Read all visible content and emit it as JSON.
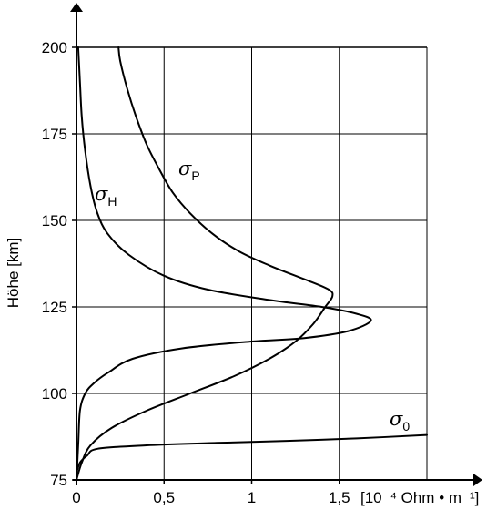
{
  "chart_data": {
    "type": "line",
    "xlabel": "[10⁻⁴ Ohm • m⁻¹]",
    "ylabel": "Höhe [km]",
    "xlim": [
      0,
      2.0
    ],
    "ylim": [
      75,
      200
    ],
    "x_ticks": [
      0,
      0.5,
      1,
      1.5
    ],
    "x_tick_labels": [
      "0",
      "0,5",
      "1",
      "1,5"
    ],
    "y_ticks": [
      75,
      100,
      125,
      150,
      175,
      200
    ],
    "y_tick_labels": [
      "75",
      "100",
      "125",
      "150",
      "175",
      "200"
    ],
    "grid": true,
    "series": [
      {
        "name": "σP",
        "label_sym": "σ",
        "label_sub": "P",
        "points": [
          [
            0.0,
            75
          ],
          [
            0.03,
            80
          ],
          [
            0.08,
            85
          ],
          [
            0.2,
            90
          ],
          [
            0.4,
            95
          ],
          [
            0.65,
            100
          ],
          [
            0.9,
            105
          ],
          [
            1.1,
            110
          ],
          [
            1.25,
            115
          ],
          [
            1.35,
            120
          ],
          [
            1.42,
            125
          ],
          [
            1.46,
            128
          ],
          [
            1.44,
            130
          ],
          [
            1.3,
            133
          ],
          [
            1.1,
            137
          ],
          [
            0.93,
            141
          ],
          [
            0.78,
            146
          ],
          [
            0.65,
            152
          ],
          [
            0.55,
            158
          ],
          [
            0.47,
            165
          ],
          [
            0.4,
            172
          ],
          [
            0.34,
            180
          ],
          [
            0.29,
            188
          ],
          [
            0.25,
            196
          ],
          [
            0.24,
            200
          ]
        ]
      },
      {
        "name": "σH",
        "label_sym": "σ",
        "label_sub": "H",
        "points": [
          [
            0.0,
            75
          ],
          [
            0.01,
            85
          ],
          [
            0.02,
            95
          ],
          [
            0.05,
            100
          ],
          [
            0.1,
            103
          ],
          [
            0.18,
            106
          ],
          [
            0.32,
            110
          ],
          [
            0.6,
            113
          ],
          [
            1.0,
            115
          ],
          [
            1.3,
            116
          ],
          [
            1.55,
            118
          ],
          [
            1.68,
            121
          ],
          [
            1.6,
            123
          ],
          [
            1.4,
            125
          ],
          [
            1.1,
            127
          ],
          [
            0.75,
            130
          ],
          [
            0.5,
            134
          ],
          [
            0.3,
            140
          ],
          [
            0.18,
            146
          ],
          [
            0.12,
            152
          ],
          [
            0.08,
            160
          ],
          [
            0.05,
            170
          ],
          [
            0.03,
            180
          ],
          [
            0.02,
            190
          ],
          [
            0.01,
            200
          ]
        ]
      },
      {
        "name": "σ0",
        "label_sym": "σ",
        "label_sub": "0",
        "points": [
          [
            0.0,
            77
          ],
          [
            0.02,
            80
          ],
          [
            0.06,
            82
          ],
          [
            0.12,
            84
          ],
          [
            0.4,
            85
          ],
          [
            0.8,
            85.7
          ],
          [
            1.2,
            86.3
          ],
          [
            1.6,
            87
          ],
          [
            2.0,
            88
          ]
        ]
      }
    ]
  }
}
